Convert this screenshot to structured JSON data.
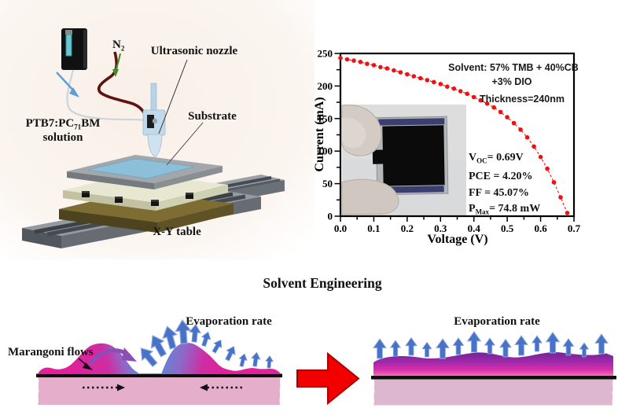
{
  "title": "Solvent Engineering",
  "spray_panel": {
    "n2_label": {
      "main": "N",
      "sub": "2"
    },
    "nozzle_label": "Ultrasonic nozzle",
    "substrate_label": "Substrate",
    "solution_label": {
      "p1": "PTB7:PC",
      "sub": "71",
      "p2": "BM",
      "line2": "solution"
    },
    "table_label": "X-Y table"
  },
  "chart_data": {
    "type": "scatter",
    "title": "",
    "xlabel": "Voltage (V)",
    "ylabel": "Current (mA)",
    "xlim": [
      0.0,
      0.7
    ],
    "ylim": [
      0,
      250
    ],
    "x_ticks": [
      "0.0",
      "0.1",
      "0.2",
      "0.3",
      "0.4",
      "0.5",
      "0.6",
      "0.7"
    ],
    "y_ticks": [
      "0",
      "50",
      "100",
      "150",
      "200",
      "250"
    ],
    "grid": false,
    "legend": "none",
    "marker": "filled-circle",
    "marker_color": "#ee1111",
    "line": "dashed",
    "annotation": {
      "line1": "Solvent: 57% TMB + 40%CB",
      "line2": "+3% DIO",
      "line3": "Thickness=240nm"
    },
    "parameters": [
      {
        "pre": "V",
        "sub": "OC",
        "rest": "= 0.69V"
      },
      {
        "pre": "PCE = 4.20%",
        "sub": "",
        "rest": ""
      },
      {
        "pre": "FF = 45.07%",
        "sub": "",
        "rest": ""
      },
      {
        "pre": "P",
        "sub": "Max",
        "rest": "= 74.8 mW"
      }
    ],
    "series": [
      {
        "name": "current-voltage-curve",
        "x": [
          0.0,
          0.02,
          0.04,
          0.06,
          0.08,
          0.1,
          0.12,
          0.14,
          0.16,
          0.18,
          0.2,
          0.22,
          0.24,
          0.26,
          0.28,
          0.3,
          0.32,
          0.34,
          0.36,
          0.38,
          0.4,
          0.42,
          0.44,
          0.46,
          0.48,
          0.5,
          0.52,
          0.54,
          0.56,
          0.58,
          0.6,
          0.62,
          0.64,
          0.66,
          0.68
        ],
        "y": [
          243,
          241,
          239,
          237,
          234,
          232,
          229,
          227,
          224,
          221,
          218,
          215,
          212,
          209,
          206,
          203,
          199,
          196,
          192,
          188,
          183,
          178,
          173,
          167,
          160,
          152,
          143,
          133,
          121,
          107,
          91,
          73,
          52,
          29,
          5
        ]
      }
    ]
  },
  "solvent_diagram": {
    "left": {
      "evaporation_label": "Evaporation rate",
      "marangoni_label": "Marangoni flows"
    },
    "right": {
      "evaporation_label": "Evaporation rate"
    }
  },
  "colors": {
    "curve_red": "#ee1111",
    "film_magenta": "#e0219c",
    "film_blue_purple": "#5f86d6",
    "right_film_top_purple": "#6c2597",
    "substrate_pink": "#e5aecb",
    "evaporation_arrow_blue": "#4673c8",
    "transition_arrow_red": "#f20000"
  }
}
